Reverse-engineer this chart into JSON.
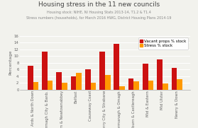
{
  "title": "Housing stress in the 11 new councils",
  "subtitle1": "Housing stock: NIHE, NI Housing Stats 2013-14, T1.2 & T1.4",
  "subtitle2": "Stress numbers (households), for March 2016 HWG, District Housing Plans 2014-19",
  "categories": [
    "Ards & North Down",
    "Armagh City & Banb.",
    "Antrim & Newtownabbey",
    "Belfast",
    "Causeway Coast",
    "Derry City & Strabane",
    "Fermanagh & Omagh",
    "Lisburn & Castlereagh",
    "Mid & Eastern",
    "Mid Ulster",
    "Newry & Down"
  ],
  "vacant_props": [
    7.0,
    11.3,
    5.2,
    3.9,
    6.0,
    11.4,
    13.6,
    3.2,
    7.7,
    9.0,
    6.5
  ],
  "stress": [
    2.3,
    2.6,
    2.0,
    4.9,
    2.1,
    4.4,
    0.9,
    2.5,
    2.6,
    1.9,
    3.1
  ],
  "vacant_color": "#cc1111",
  "stress_color": "#ff9900",
  "ylabel": "Percentage",
  "ylim": [
    0,
    16
  ],
  "yticks": [
    0,
    2,
    4,
    6,
    8,
    10,
    12,
    14,
    16
  ],
  "legend_vacant": "Vacant props % stock",
  "legend_stress": "Stress % stock",
  "bg_color": "#f2f2ed",
  "title_fontsize": 6.5,
  "subtitle_fontsize": 3.5,
  "axis_fontsize": 4.5,
  "tick_fontsize": 3.8,
  "legend_fontsize": 4.0
}
